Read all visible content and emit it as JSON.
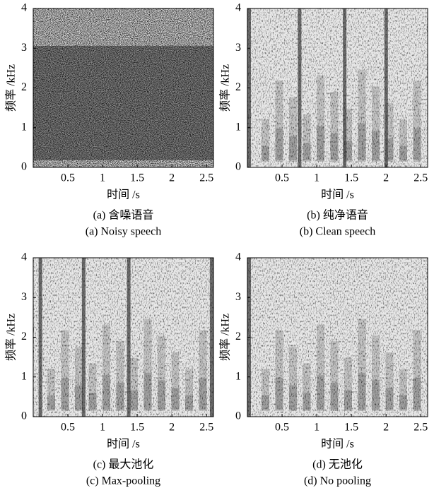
{
  "chart_data": [
    {
      "type": "spectrogram",
      "xlabel": "时间 /s",
      "ylabel": "频率 /kHz",
      "xlim": [
        0,
        2.6
      ],
      "ylim": [
        0,
        4
      ],
      "xticks": [
        0.5,
        1,
        1.5,
        2,
        2.5
      ],
      "yticks": [
        0,
        1,
        2,
        3,
        4
      ],
      "caption_zh": "(a) 含噪语音",
      "caption_en": "(a) Noisy speech"
    },
    {
      "type": "spectrogram",
      "xlabel": "时间 /s",
      "ylabel": "频率 /kHz",
      "xlim": [
        0,
        2.6
      ],
      "ylim": [
        0,
        4
      ],
      "xticks": [
        0.5,
        1,
        1.5,
        2,
        2.5
      ],
      "yticks": [
        0,
        1,
        2,
        3,
        4
      ],
      "caption_zh": "(b) 纯净语音",
      "caption_en": "(b) Clean speech"
    },
    {
      "type": "spectrogram",
      "xlabel": "时间 /s",
      "ylabel": "频率 /kHz",
      "xlim": [
        0,
        2.6
      ],
      "ylim": [
        0,
        4
      ],
      "xticks": [
        0.5,
        1,
        1.5,
        2,
        2.5
      ],
      "yticks": [
        0,
        1,
        2,
        3,
        4
      ],
      "caption_zh": "(c) 最大池化",
      "caption_en": "(c) Max-pooling"
    },
    {
      "type": "spectrogram",
      "xlabel": "时间 /s",
      "ylabel": "频率 /kHz",
      "xlim": [
        0,
        2.6
      ],
      "ylim": [
        0,
        4
      ],
      "xticks": [
        0.5,
        1,
        1.5,
        2,
        2.5
      ],
      "yticks": [
        0,
        1,
        2,
        3,
        4
      ],
      "caption_zh": "(d) 无池化",
      "caption_en": "(d) No pooling"
    }
  ]
}
